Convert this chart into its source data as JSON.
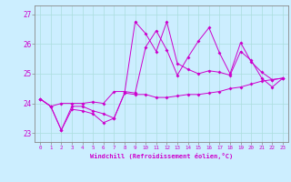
{
  "xlabel": "Windchill (Refroidissement éolien,°C)",
  "xlim": [
    -0.5,
    23.5
  ],
  "ylim": [
    22.7,
    27.3
  ],
  "yticks": [
    23,
    24,
    25,
    26,
    27
  ],
  "xticks": [
    0,
    1,
    2,
    3,
    4,
    5,
    6,
    7,
    8,
    9,
    10,
    11,
    12,
    13,
    14,
    15,
    16,
    17,
    18,
    19,
    20,
    21,
    22,
    23
  ],
  "bg_color": "#cceeff",
  "line_color": "#cc00cc",
  "series1": [
    24.15,
    23.9,
    23.1,
    23.9,
    23.9,
    23.75,
    23.65,
    23.5,
    24.35,
    24.3,
    24.3,
    24.2,
    24.2,
    24.25,
    24.3,
    24.3,
    24.35,
    24.4,
    24.5,
    24.55,
    24.65,
    24.75,
    24.8,
    24.85
  ],
  "series2": [
    24.15,
    23.9,
    24.0,
    24.0,
    24.0,
    24.05,
    24.0,
    24.4,
    24.4,
    24.35,
    25.9,
    26.45,
    25.8,
    24.95,
    25.55,
    26.1,
    26.55,
    25.7,
    25.0,
    26.05,
    25.4,
    25.05,
    24.8,
    24.85
  ],
  "series3": [
    24.15,
    23.9,
    23.1,
    23.8,
    23.75,
    23.65,
    23.35,
    23.5,
    24.35,
    26.75,
    26.35,
    25.75,
    26.75,
    25.35,
    25.15,
    25.0,
    25.1,
    25.05,
    24.95,
    25.75,
    25.45,
    24.85,
    24.55,
    24.85
  ]
}
